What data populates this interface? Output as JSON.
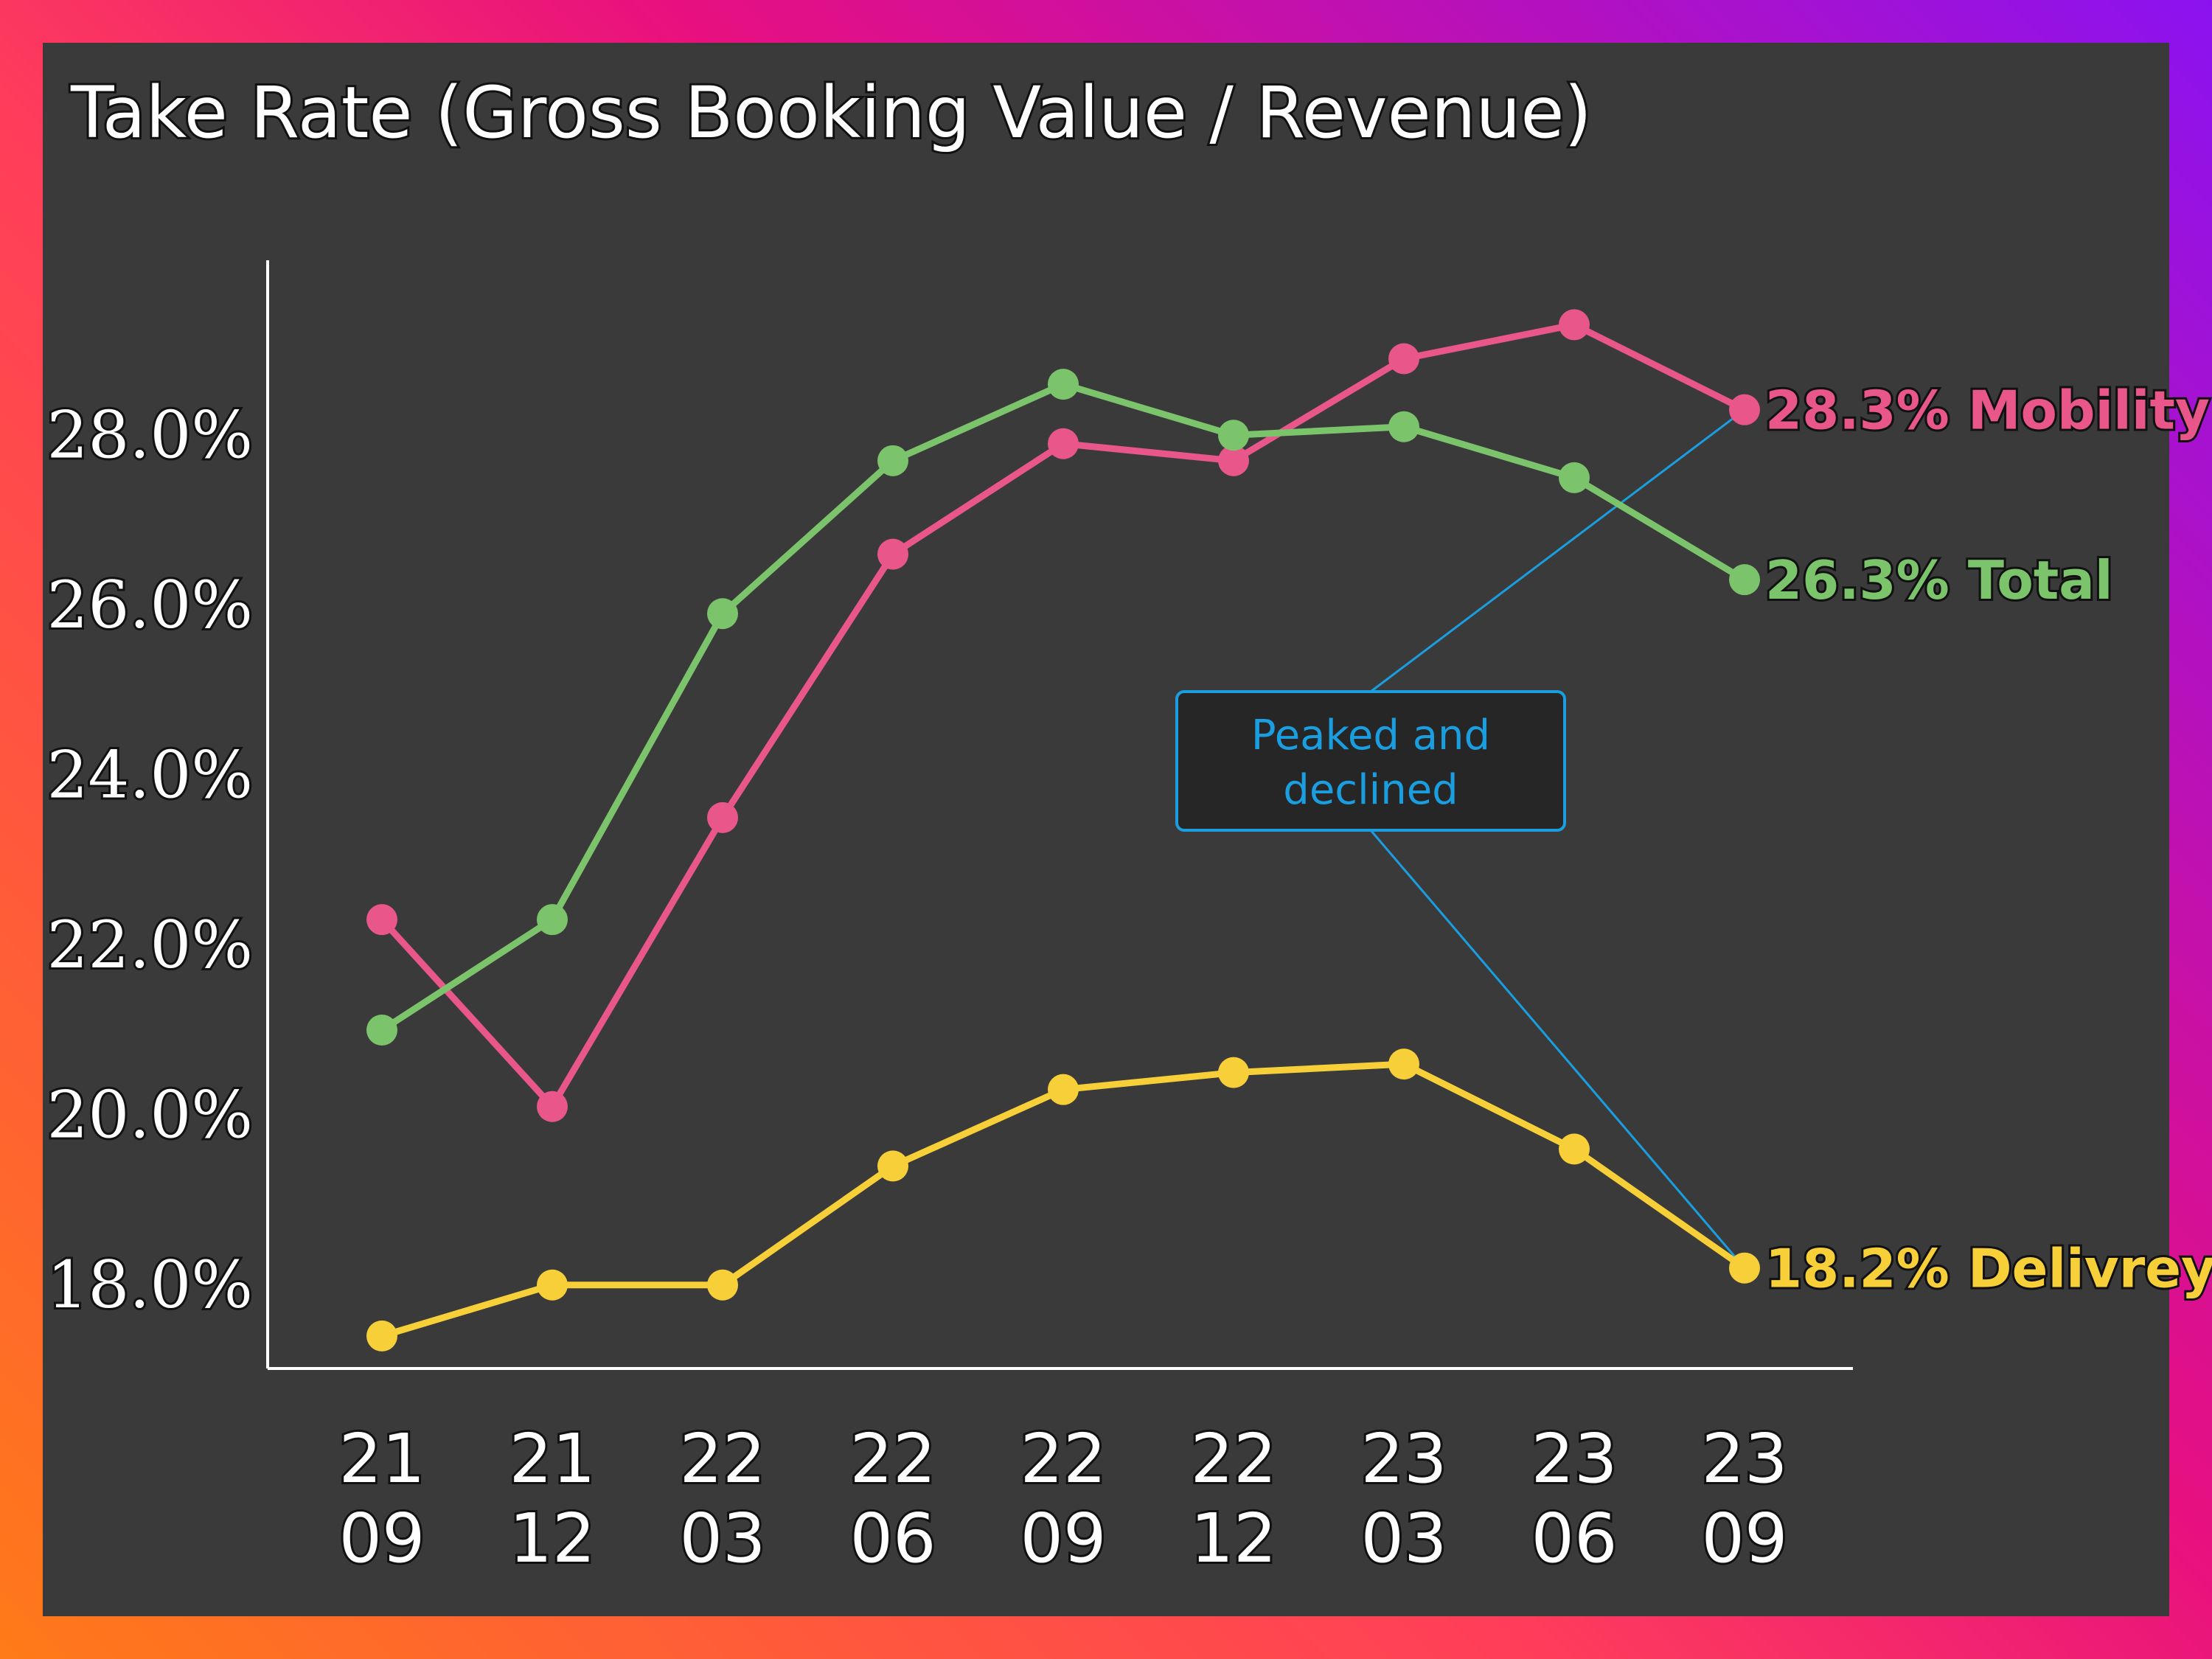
{
  "colors": {
    "mobility": "#e8568a",
    "total": "#7cc46b",
    "delivery": "#f7cf38",
    "annotation": "#1a9ee0",
    "panel": "#3a3a3a"
  },
  "chart_data": {
    "type": "line",
    "title": "Take Rate (Gross Booking Value / Revenue)",
    "xlabel": "",
    "ylabel": "",
    "categories": [
      [
        "21",
        "09"
      ],
      [
        "21",
        "12"
      ],
      [
        "22",
        "03"
      ],
      [
        "22",
        "06"
      ],
      [
        "22",
        "09"
      ],
      [
        "22",
        "12"
      ],
      [
        "23",
        "03"
      ],
      [
        "23",
        "06"
      ],
      [
        "23",
        "09"
      ]
    ],
    "yticks": [
      "18.0%",
      "20.0%",
      "22.0%",
      "24.0%",
      "26.0%",
      "28.0%"
    ],
    "ytick_values": [
      18,
      20,
      22,
      24,
      26,
      28
    ],
    "ylim": [
      16.9,
      29.9
    ],
    "grid": false,
    "legend": "none",
    "series": [
      {
        "key": "mobility",
        "values": [
          22.3,
          20.1,
          23.5,
          26.6,
          27.9,
          27.7,
          28.9,
          29.3,
          28.3
        ],
        "end_label": "28.3% Mobility"
      },
      {
        "key": "total",
        "values": [
          21.0,
          22.3,
          25.9,
          27.7,
          28.6,
          28.0,
          28.1,
          27.5,
          26.3
        ],
        "end_label": "26.3% Total"
      },
      {
        "key": "delivery",
        "values": [
          17.4,
          18.0,
          18.0,
          19.4,
          20.3,
          20.5,
          20.6,
          19.6,
          18.2
        ],
        "end_label": "18.2% Delivrey"
      }
    ],
    "annotation": {
      "text_lines": [
        "Peaked and",
        "declined"
      ],
      "targets": [
        {
          "series": "mobility",
          "index": 8
        },
        {
          "series": "delivery",
          "index": 8
        }
      ]
    }
  }
}
